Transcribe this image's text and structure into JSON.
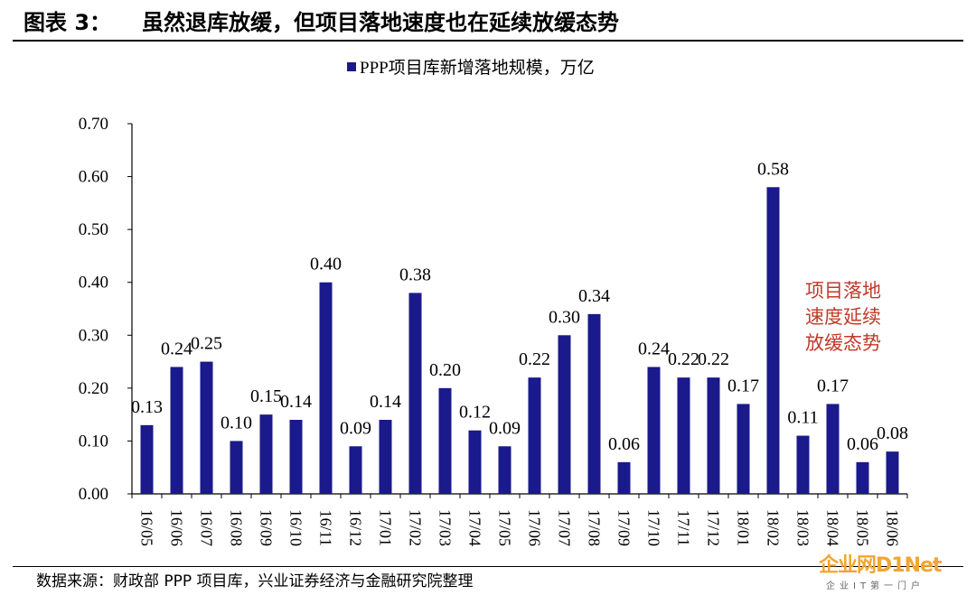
{
  "figure": {
    "label": "图表 3：",
    "title": "虽然退库放缓，但项目落地速度也在延续放缓态势",
    "source": "数据来源：财政部 PPP 项目库，兴业证券经济与金融研究院整理"
  },
  "watermark": {
    "main": "企业网D1Net",
    "sub": "企业IT第一门户"
  },
  "colors": {
    "bar": "#1a1a8c",
    "annotation": "#c0392b"
  },
  "chart_data": {
    "type": "bar",
    "legend": "PPP项目库新增落地规模，万亿",
    "legend_position": "top-center",
    "categories": [
      "16/05",
      "16/06",
      "16/07",
      "16/08",
      "16/09",
      "16/10",
      "16/11",
      "16/12",
      "17/01",
      "17/02",
      "17/03",
      "17/04",
      "17/05",
      "17/06",
      "17/07",
      "17/08",
      "17/09",
      "17/10",
      "17/11",
      "17/12",
      "18/01",
      "18/02",
      "18/03",
      "18/04",
      "18/05",
      "18/06"
    ],
    "values": [
      0.13,
      0.24,
      0.25,
      0.1,
      0.15,
      0.14,
      0.4,
      0.09,
      0.14,
      0.38,
      0.2,
      0.12,
      0.09,
      0.22,
      0.3,
      0.34,
      0.06,
      0.24,
      0.22,
      0.22,
      0.17,
      0.58,
      0.11,
      0.17,
      0.06,
      0.08
    ],
    "data_labels": [
      "0.13",
      "0.24",
      "0.25",
      "0.10",
      "0.15",
      "0.14",
      "0.40",
      "0.09",
      "0.14",
      "0.38",
      "0.20",
      "0.12",
      "0.09",
      "0.22",
      "0.30",
      "0.34",
      "0.06",
      "0.24",
      "0.22",
      "0.22",
      "0.17",
      "0.58",
      "0.11",
      "0.17",
      "0.06",
      "0.08"
    ],
    "y_ticks": [
      "0.00",
      "0.10",
      "0.20",
      "0.30",
      "0.40",
      "0.50",
      "0.60",
      "0.70"
    ],
    "ylim": [
      0,
      0.7
    ],
    "grid": false,
    "annotation": [
      "项目落地",
      "速度延续",
      "放缓态势"
    ]
  }
}
